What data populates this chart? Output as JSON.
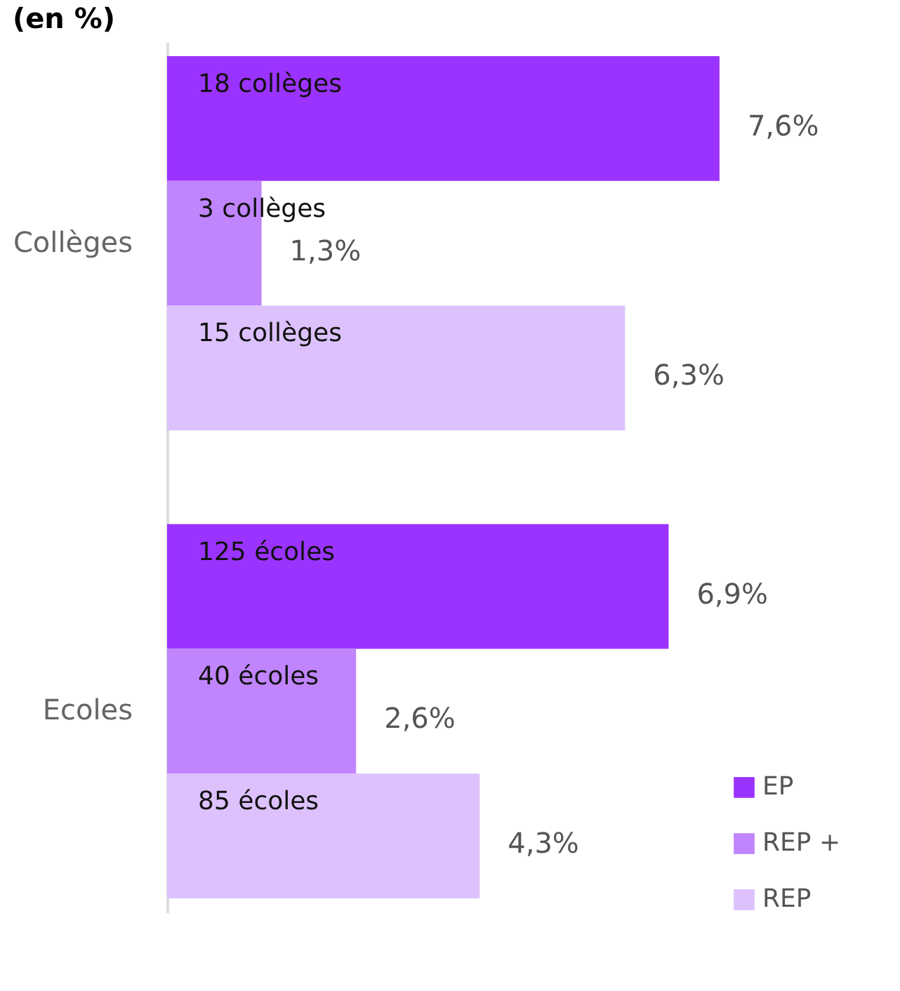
{
  "chart_data": {
    "type": "bar",
    "orientation": "horizontal",
    "title": "(en %)",
    "categories": [
      "Collèges",
      "Ecoles"
    ],
    "series": [
      {
        "name": "EP",
        "color": "#9b33ff",
        "values": [
          7.6,
          6.9
        ],
        "value_labels": [
          "7,6%",
          "6,9%"
        ]
      },
      {
        "name": "REP +",
        "color": "#c084fc",
        "values": [
          1.3,
          2.6
        ],
        "value_labels": [
          "1,3%",
          "2,6%"
        ]
      },
      {
        "name": "REP",
        "color": "#dcc1fd",
        "values": [
          6.3,
          4.3
        ],
        "value_labels": [
          "6,3%",
          "4,3%"
        ]
      }
    ],
    "annotations": [
      "18 collèges",
      "3 collèges",
      "15 collèges",
      "125 écoles",
      "40 écoles",
      "85 écoles"
    ],
    "legend": "bottom right"
  }
}
